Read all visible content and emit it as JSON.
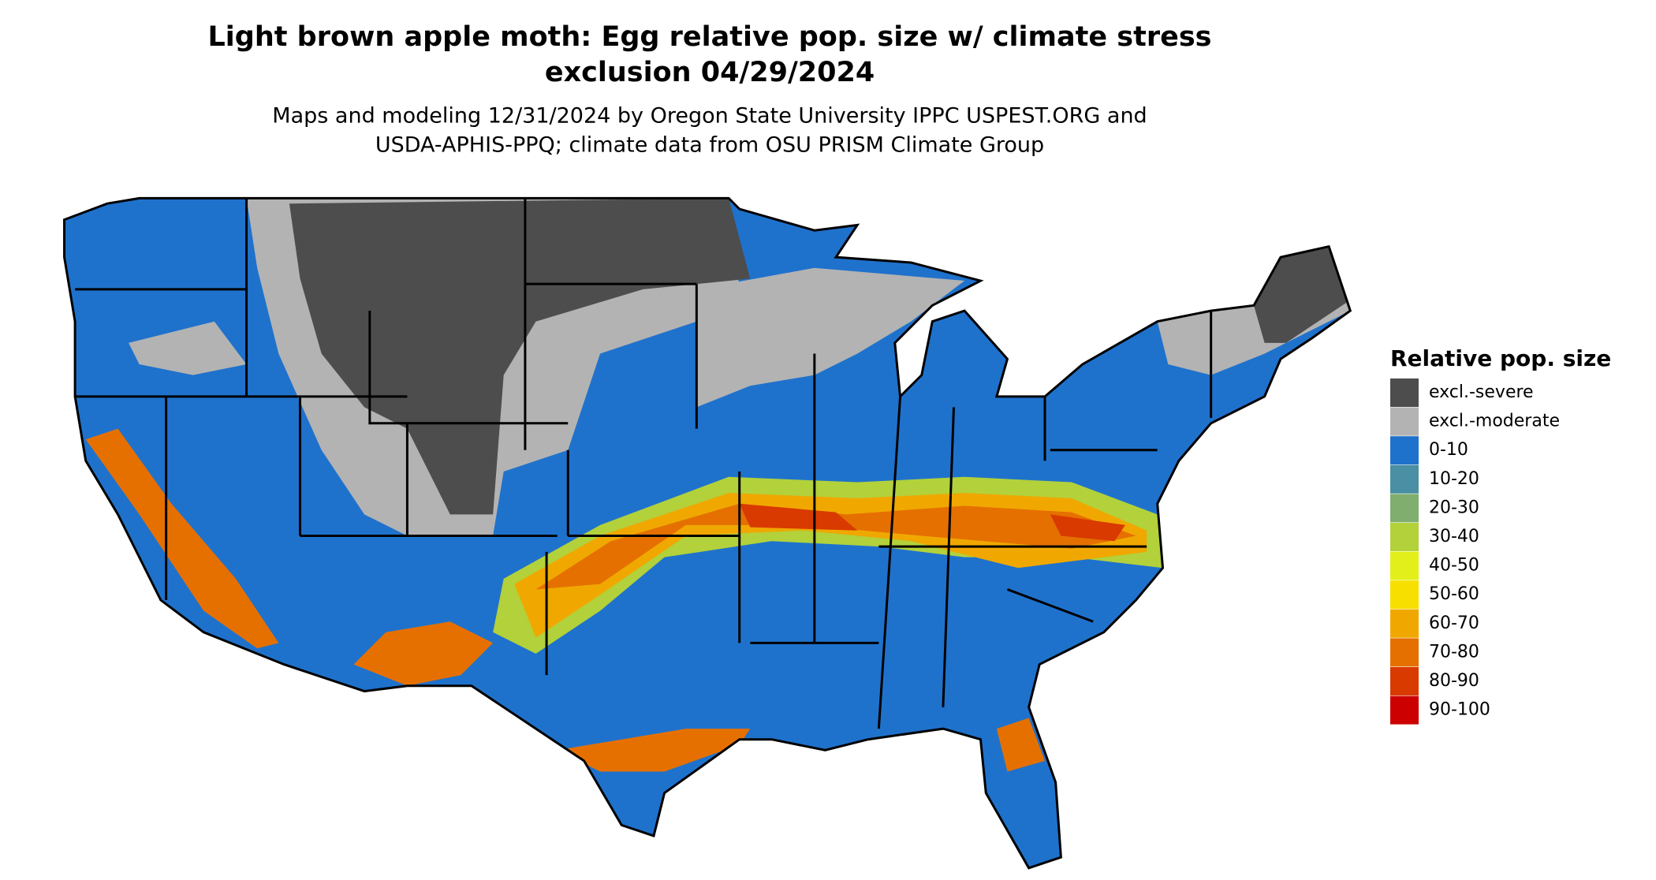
{
  "title_lines": [
    "Light brown apple moth: Egg relative pop. size w/ climate stress",
    "exclusion 04/29/2024"
  ],
  "subtitle_lines": [
    "Maps and modeling 12/31/2024 by Oregon State University IPPC USPEST.ORG and",
    "USDA-APHIS-PPQ; climate data from OSU PRISM Climate Group"
  ],
  "legend": {
    "title": "Relative pop. size",
    "items": [
      {
        "label": "excl.-severe",
        "color": "#4d4d4d"
      },
      {
        "label": "excl.-moderate",
        "color": "#b3b3b3"
      },
      {
        "label": "0-10",
        "color": "#1f72cc"
      },
      {
        "label": "10-20",
        "color": "#4a8fa3"
      },
      {
        "label": "20-30",
        "color": "#7fae6e"
      },
      {
        "label": "30-40",
        "color": "#b2d13b"
      },
      {
        "label": "40-50",
        "color": "#e3ef1a"
      },
      {
        "label": "50-60",
        "color": "#f7df00"
      },
      {
        "label": "60-70",
        "color": "#f0a800"
      },
      {
        "label": "70-80",
        "color": "#e57000"
      },
      {
        "label": "80-90",
        "color": "#d83a00"
      },
      {
        "label": "90-100",
        "color": "#cc0000"
      }
    ]
  }
}
